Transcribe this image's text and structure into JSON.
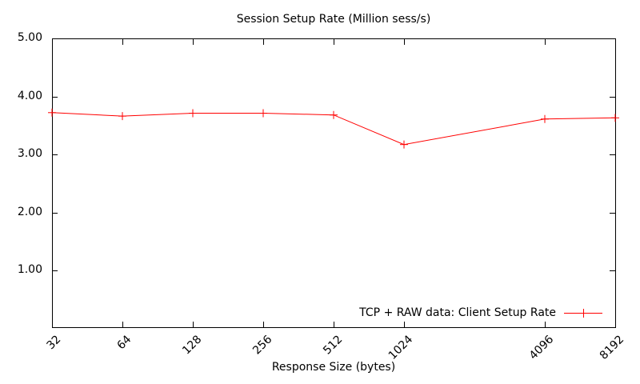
{
  "colors": {
    "background": "#ffffff",
    "axis": "#000000",
    "text": "#000000",
    "series": "#ff0000"
  },
  "chart_data": {
    "type": "line",
    "title": "Session Setup Rate (Million sess/s)",
    "xlabel": "Response Size (bytes)",
    "ylabel": "",
    "x_scale": "log2",
    "x": [
      32,
      64,
      128,
      256,
      512,
      1024,
      4096,
      8192
    ],
    "x_tick_labels": [
      "32",
      "64",
      "128",
      "256",
      "512",
      "1024",
      "4096",
      "8192"
    ],
    "y_tick_values": [
      1,
      2,
      3,
      4,
      5
    ],
    "y_tick_labels": [
      "1.00",
      "2.00",
      "3.00",
      "4.00",
      "5.00"
    ],
    "xlim_log2": [
      32,
      8192
    ],
    "ylim": [
      0,
      5
    ],
    "grid": false,
    "legend_position": "inside-bottom-right",
    "series": [
      {
        "name": "TCP + RAW data: Client Setup Rate",
        "color": "#ff0000",
        "marker": "plus",
        "values": [
          3.72,
          3.66,
          3.71,
          3.71,
          3.68,
          3.17,
          3.61,
          3.63
        ]
      }
    ]
  }
}
